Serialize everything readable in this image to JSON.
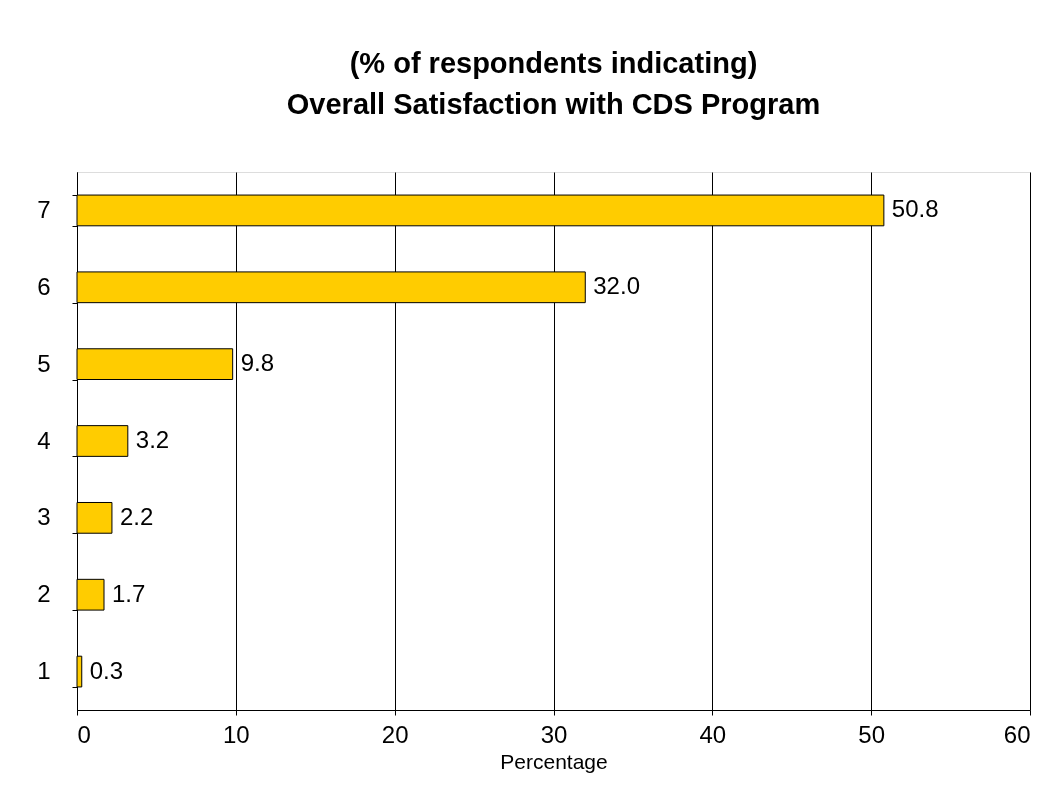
{
  "chart_data": {
    "type": "bar",
    "orientation": "horizontal",
    "title": "(% of respondents indicating)",
    "subtitle": "Overall Satisfaction with CDS Program",
    "xlabel": "Percentage",
    "categories": [
      "7",
      "6",
      "5",
      "4",
      "3",
      "2",
      "1"
    ],
    "values": [
      50.8,
      32.0,
      9.8,
      3.2,
      2.2,
      1.7,
      0.3
    ],
    "color": "#ffcc00",
    "xlim": [
      0,
      60
    ],
    "xticks": [
      0,
      10,
      20,
      30,
      40,
      50,
      60
    ],
    "grid": "x",
    "data_labels": true,
    "value_labels": [
      "50.8",
      "32.0",
      "9.8",
      "3.2",
      "2.2",
      "1.7",
      "0.3"
    ]
  }
}
